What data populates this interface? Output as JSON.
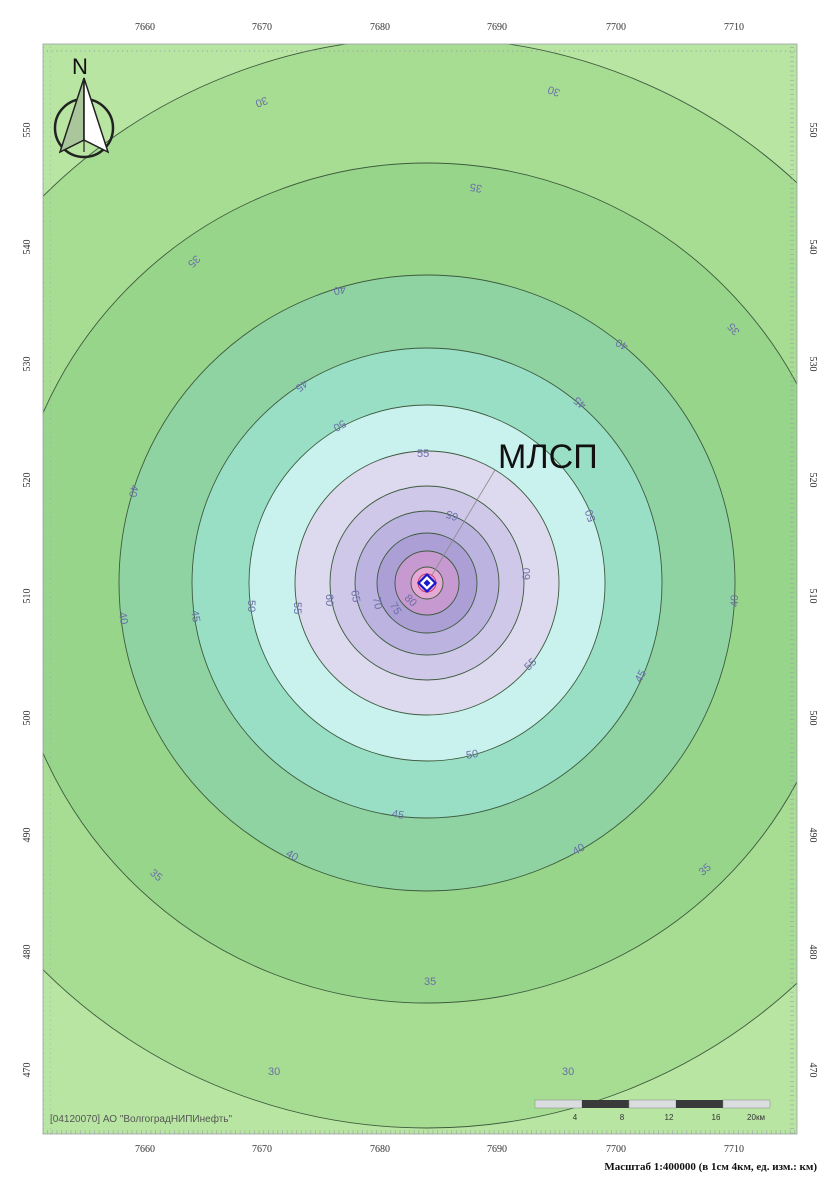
{
  "map": {
    "x_ticks": [
      7660,
      7670,
      7680,
      7690,
      7700,
      7710
    ],
    "y_ticks": [
      550,
      540,
      530,
      520,
      510,
      500,
      490,
      480,
      470
    ],
    "source_label": "МЛСП",
    "credit": "[04120070] АО \"ВолгоградНИПИнефть\"",
    "north_label": "N",
    "scale_caption": "Масштаб 1:400000 (в 1см 4км, ед. изм.: км)",
    "scale_ticks": [
      "4",
      "8",
      "12",
      "16",
      "20км"
    ],
    "contour_labels": {
      "c30": "30",
      "c35": "35",
      "c40": "40",
      "c45": "45",
      "c50": "50",
      "c55": "55",
      "c60": "60",
      "c65": "65",
      "c70": "70",
      "c75": "75",
      "c80": "80"
    },
    "colors": {
      "outer": "#b8e6a2",
      "ring35": "#a7dd92",
      "ring40": "#97d68a",
      "ring45": "#8fd3a2",
      "ring50": "#99dfc6",
      "ring55": "#c9f2ef",
      "ring60": "#ddd9ee",
      "ring65": "#cfc8e8",
      "ring70": "#bcb3e0",
      "ring75": "#ab9fd6",
      "ring80": "#c69ad0",
      "core": "#e6a8d4",
      "source_marker": "#1a1acc"
    }
  }
}
